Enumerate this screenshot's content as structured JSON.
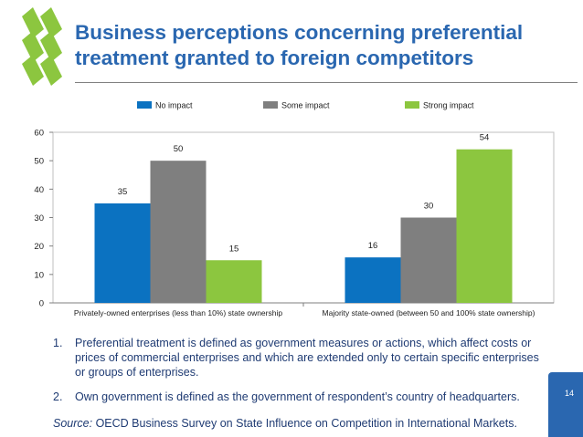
{
  "slide": {
    "title": "Business perceptions concerning preferential treatment granted to foreign competitors",
    "notes": [
      {
        "num": "1.",
        "text": "Preferential treatment is defined as government measures or actions, which affect costs or prices of commercial enterprises and which are extended only to certain specific enterprises or groups of enterprises."
      },
      {
        "num": "2.",
        "text": "Own government is defined as the government of respondent’s country of headquarters."
      }
    ],
    "source_label": "Source:",
    "source_text": " OECD Business Survey on State Influence on Competition in International Markets.",
    "page_number": "14",
    "brand_color": "#2a67b0",
    "logo_color": "#8cc63f"
  },
  "chart_data": {
    "type": "bar",
    "categories": [
      "Privately-owned enterprises (less than 10%) state ownership",
      "Majority state-owned (between 50 and 100% state ownership)"
    ],
    "series": [
      {
        "name": "No impact",
        "values": [
          35,
          16
        ],
        "color": "#0b72c1"
      },
      {
        "name": "Some impact",
        "values": [
          50,
          30
        ],
        "color": "#7f7f7f"
      },
      {
        "name": "Strong impact",
        "values": [
          15,
          54
        ],
        "color": "#8cc63f"
      }
    ],
    "ylim": [
      0,
      60
    ],
    "yticks": [
      0,
      10,
      20,
      30,
      40,
      50,
      60
    ],
    "legend": "top",
    "grid": false
  }
}
